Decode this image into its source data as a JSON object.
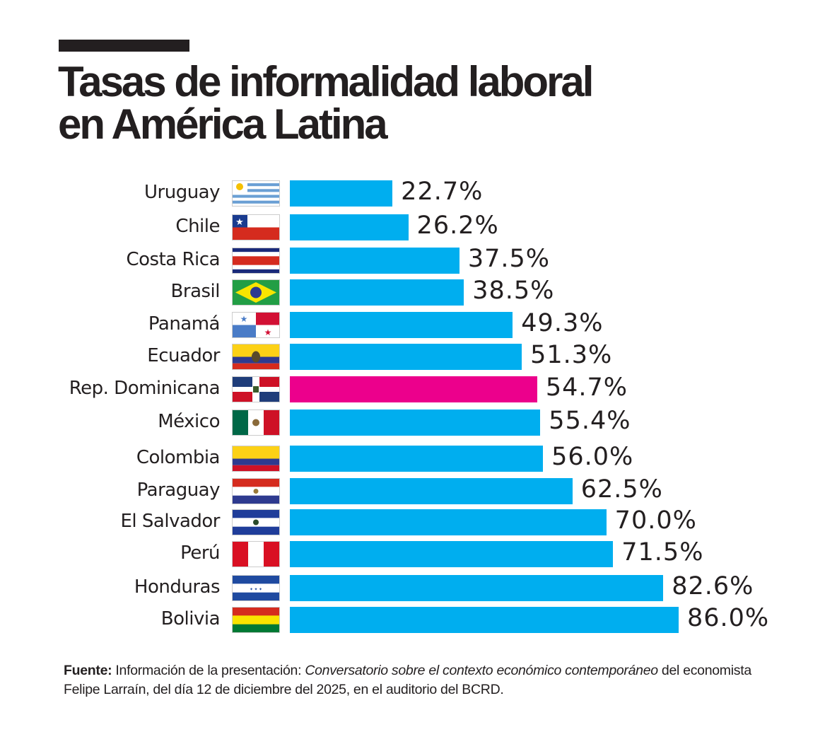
{
  "title": {
    "line1": "Tasas de informalidad laboral",
    "line2": "en América Latina"
  },
  "colors": {
    "bar": "#00AEEF",
    "highlight": "#EC008C",
    "text": "#231F20"
  },
  "chart_data": {
    "type": "bar",
    "orientation": "horizontal",
    "categories": [
      "Uruguay",
      "Chile",
      "Costa Rica",
      "Brasil",
      "Panamá",
      "Ecuador",
      "Rep. Dominicana",
      "México",
      "Colombia",
      "Paraguay",
      "El Salvador",
      "Perú",
      "Honduras",
      "Bolivia"
    ],
    "values": [
      22.7,
      26.2,
      37.5,
      38.5,
      49.3,
      51.3,
      54.7,
      55.4,
      56.0,
      62.5,
      70.0,
      71.5,
      82.6,
      86.0
    ],
    "value_labels": [
      "22.7%",
      "26.2%",
      "37.5%",
      "38.5%",
      "49.3%",
      "51.3%",
      "54.7%",
      "55.4%",
      "56.0%",
      "62.5%",
      "70.0%",
      "71.5%",
      "82.6%",
      "86.0%"
    ],
    "highlight": "Rep. Dominicana",
    "flags": [
      "flag-uruguay",
      "flag-chile",
      "flag-costa-rica",
      "flag-brasil",
      "flag-panama",
      "flag-ecuador",
      "flag-rep-dominicana",
      "flag-mexico",
      "flag-colombia",
      "flag-paraguay",
      "flag-el-salvador",
      "flag-peru",
      "flag-honduras",
      "flag-bolivia"
    ],
    "xlim": [
      0,
      100
    ],
    "grid": false,
    "legend": "none"
  },
  "footnote": {
    "label": "Fuente:",
    "text1": " Información de la presentación: ",
    "italic": "Conversatorio sobre el contexto económico contemporáneo",
    "text2": " del economista Felipe Larraín, del día 12 de diciembre del 2025, en el auditorio del BCRD."
  }
}
